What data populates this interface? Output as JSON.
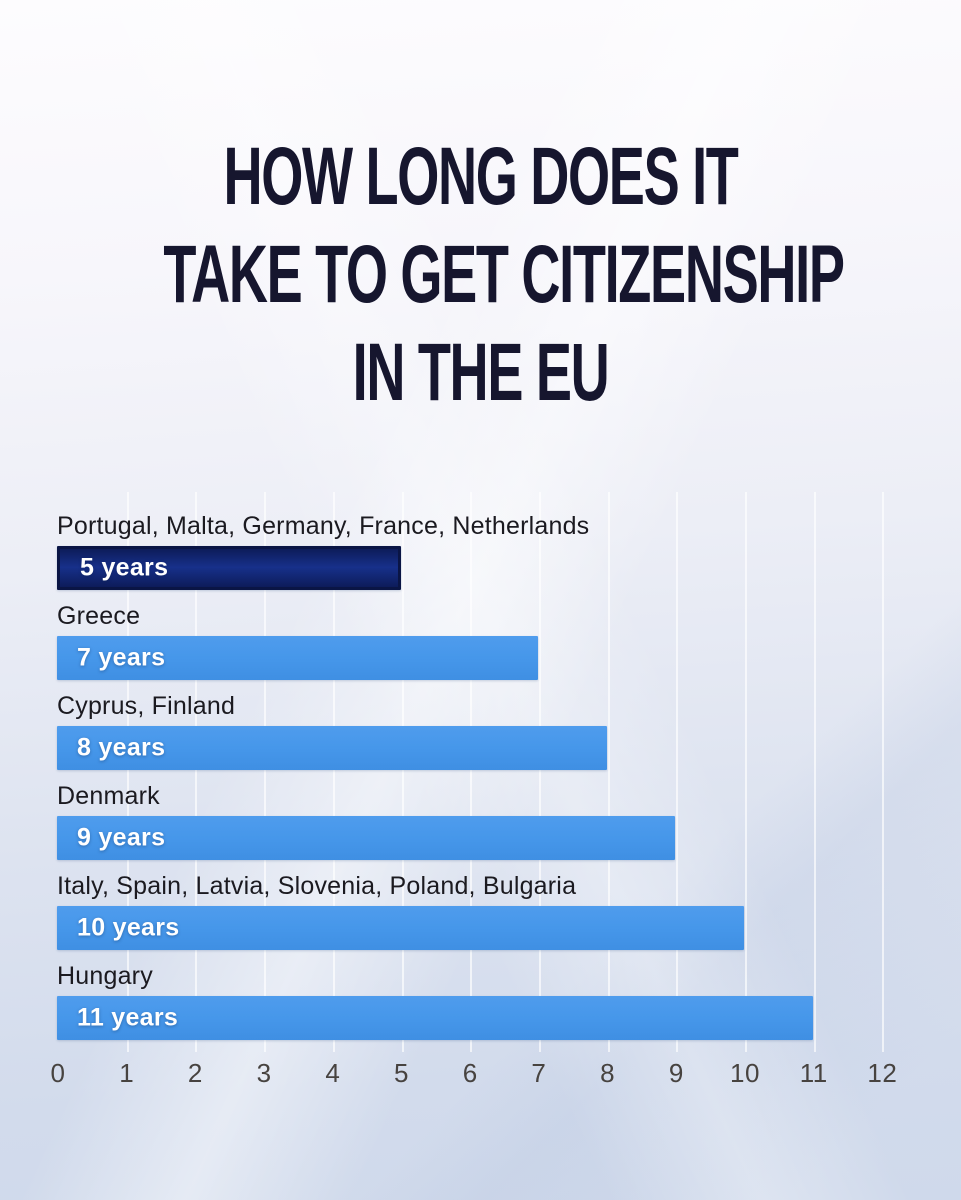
{
  "title": {
    "lines": [
      "HOW LONG DOES IT",
      "TAKE TO GET CITIZENSHIP",
      "IN THE EU"
    ]
  },
  "chart_data": {
    "type": "bar",
    "orientation": "horizontal",
    "title": "HOW LONG DOES IT TAKE TO GET CITIZENSHIP IN THE EU",
    "categories": [
      "Portugal, Malta, Germany, France, Netherlands",
      "Greece",
      "Cyprus, Finland",
      "Denmark",
      "Italy, Spain, Latvia, Slovenia, Poland, Bulgaria",
      "Hungary"
    ],
    "values": [
      5,
      7,
      8,
      9,
      10,
      11
    ],
    "bar_labels": [
      "5 years",
      "7 years",
      "8 years",
      "9 years",
      "10 years",
      "11 years"
    ],
    "xlabel": "",
    "ylabel": "",
    "xlim": [
      0,
      12
    ],
    "x_ticks": [
      "0",
      "1",
      "2",
      "3",
      "4",
      "5",
      "6",
      "7",
      "8",
      "9",
      "10",
      "11",
      "12"
    ],
    "grid": true,
    "legend": "none",
    "colors": {
      "highlight_bar": "#17308a",
      "default_bar": "#4697ea",
      "bar_text": "#ffffff",
      "category_text": "#1b1a20",
      "axis_text": "#474340",
      "title_text": "#16162e",
      "background_top": "#fdfcfe",
      "background_bottom": "#cfd9eb"
    }
  }
}
